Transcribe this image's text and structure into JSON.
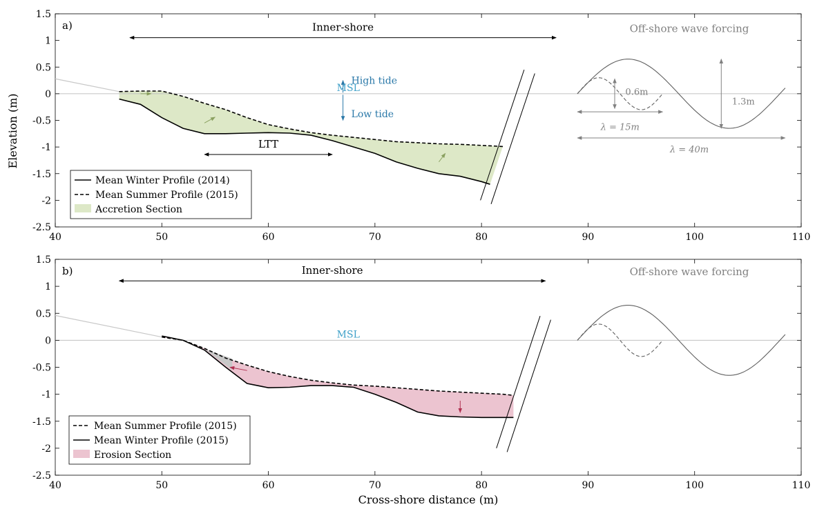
{
  "figure": {
    "ylabel": "Elevation (m)",
    "xlabel": "Cross-shore distance (m)"
  },
  "colors": {
    "accretion_fill": "#dde8c7",
    "accretion_edge": "#c9d9a8",
    "erosion_fill": "#ecc4d0",
    "gray_fill": "#c8c8c8",
    "msl_text": "#3fa0c8",
    "tide_arrow": "#2a78a8",
    "wave_gray": "#808080",
    "accretion_arrow": "#8aa060",
    "erosion_arrow": "#b03050"
  },
  "chart_data": [
    {
      "panel_label": "a)",
      "type": "line",
      "xlim": [
        40,
        110
      ],
      "ylim": [
        -2.5,
        1.5
      ],
      "xticks": [
        40,
        50,
        60,
        70,
        80,
        90,
        100,
        110
      ],
      "yticks": [
        -2.5,
        -2,
        -1.5,
        -1,
        -0.5,
        0,
        0.5,
        1,
        1.5
      ],
      "grid": false,
      "legend_position": "bottom-left",
      "series": [
        {
          "name": "Mean Winter Profile (2014)",
          "style": "solid",
          "x": [
            46,
            48,
            50,
            52,
            54,
            56,
            58,
            60,
            62,
            64,
            66,
            68,
            70,
            72,
            74,
            76,
            78,
            80,
            80.8
          ],
          "y": [
            -0.1,
            -0.2,
            -0.45,
            -0.65,
            -0.75,
            -0.75,
            -0.74,
            -0.73,
            -0.74,
            -0.78,
            -0.88,
            -1.0,
            -1.12,
            -1.28,
            -1.4,
            -1.5,
            -1.55,
            -1.65,
            -1.7
          ]
        },
        {
          "name": "Mean Summer Profile (2015)",
          "style": "dashed",
          "x": [
            46,
            48,
            50,
            52,
            54,
            56,
            58,
            60,
            62,
            64,
            66,
            68,
            70,
            72,
            74,
            76,
            78,
            80,
            82
          ],
          "y": [
            0.04,
            0.05,
            0.05,
            -0.05,
            -0.18,
            -0.3,
            -0.45,
            -0.58,
            -0.66,
            -0.73,
            -0.78,
            -0.82,
            -0.86,
            -0.9,
            -0.92,
            -0.94,
            -0.95,
            -0.97,
            -0.99
          ]
        }
      ],
      "fill_label": "Accretion Section",
      "beach_slope": {
        "x": [
          40,
          46
        ],
        "y": [
          0.28,
          0.04
        ]
      },
      "msl_label": "MSL",
      "annotations": {
        "inner_shore": "Inner-shore",
        "inner_shore_range": [
          47,
          87
        ],
        "inner_shore_y": 1.0,
        "offshore": "Off-shore wave forcing",
        "high_tide": "High tide",
        "low_tide": "Low tide",
        "ltt": "LTT",
        "ltt_range": [
          54,
          66
        ],
        "ltt_y": -1.14,
        "wave_small_height": "0.6m",
        "wave_large_height": "1.3m",
        "wavelength_small": "λ = 15m",
        "wavelength_large": "λ = 40m"
      },
      "waves": [
        {
          "name": "small",
          "style": "dashed",
          "x0": 89,
          "x1": 97,
          "amplitude": 0.3,
          "wavelength": 8
        },
        {
          "name": "large",
          "style": "solid",
          "x0": 89,
          "x1": 108.5,
          "amplitude": 0.65,
          "wavelength": 19
        }
      ]
    },
    {
      "panel_label": "b)",
      "type": "line",
      "xlim": [
        40,
        110
      ],
      "ylim": [
        -2.5,
        1.5
      ],
      "xticks": [
        40,
        50,
        60,
        70,
        80,
        90,
        100,
        110
      ],
      "yticks": [
        -2.5,
        -2,
        -1.5,
        -1,
        -0.5,
        0,
        0.5,
        1,
        1.5
      ],
      "grid": false,
      "legend_position": "bottom-left",
      "series": [
        {
          "name": "Mean Summer Profile (2015)",
          "style": "dashed",
          "x": [
            50,
            52,
            54,
            56,
            58,
            60,
            62,
            64,
            66,
            68,
            70,
            72,
            74,
            76,
            78,
            80,
            82,
            83
          ],
          "y": [
            0.06,
            0.0,
            -0.15,
            -0.33,
            -0.46,
            -0.58,
            -0.67,
            -0.74,
            -0.79,
            -0.83,
            -0.85,
            -0.88,
            -0.91,
            -0.94,
            -0.96,
            -0.98,
            -1.0,
            -1.02
          ]
        },
        {
          "name": "Mean Winter Profile (2015)",
          "style": "solid",
          "x": [
            50,
            52,
            54,
            56,
            58,
            60,
            62,
            64,
            66,
            68,
            70,
            72,
            74,
            76,
            78,
            80,
            82,
            83
          ],
          "y": [
            0.08,
            0.0,
            -0.18,
            -0.5,
            -0.8,
            -0.88,
            -0.87,
            -0.84,
            -0.84,
            -0.87,
            -1.0,
            -1.15,
            -1.33,
            -1.4,
            -1.42,
            -1.43,
            -1.43,
            -1.43
          ]
        }
      ],
      "fill_label": "Erosion Section",
      "beach_slope": {
        "x": [
          40,
          50
        ],
        "y": [
          0.46,
          0.06
        ]
      },
      "msl_label": "MSL",
      "annotations": {
        "inner_shore": "Inner-shore",
        "inner_shore_range": [
          46,
          86
        ],
        "inner_shore_y": 1.05,
        "offshore": "Off-shore wave forcing"
      },
      "waves": [
        {
          "name": "small",
          "style": "dashed",
          "x0": 89,
          "x1": 97,
          "amplitude": 0.3,
          "wavelength": 8
        },
        {
          "name": "large",
          "style": "solid",
          "x0": 89,
          "x1": 108.5,
          "amplitude": 0.65,
          "wavelength": 19
        }
      ]
    }
  ]
}
